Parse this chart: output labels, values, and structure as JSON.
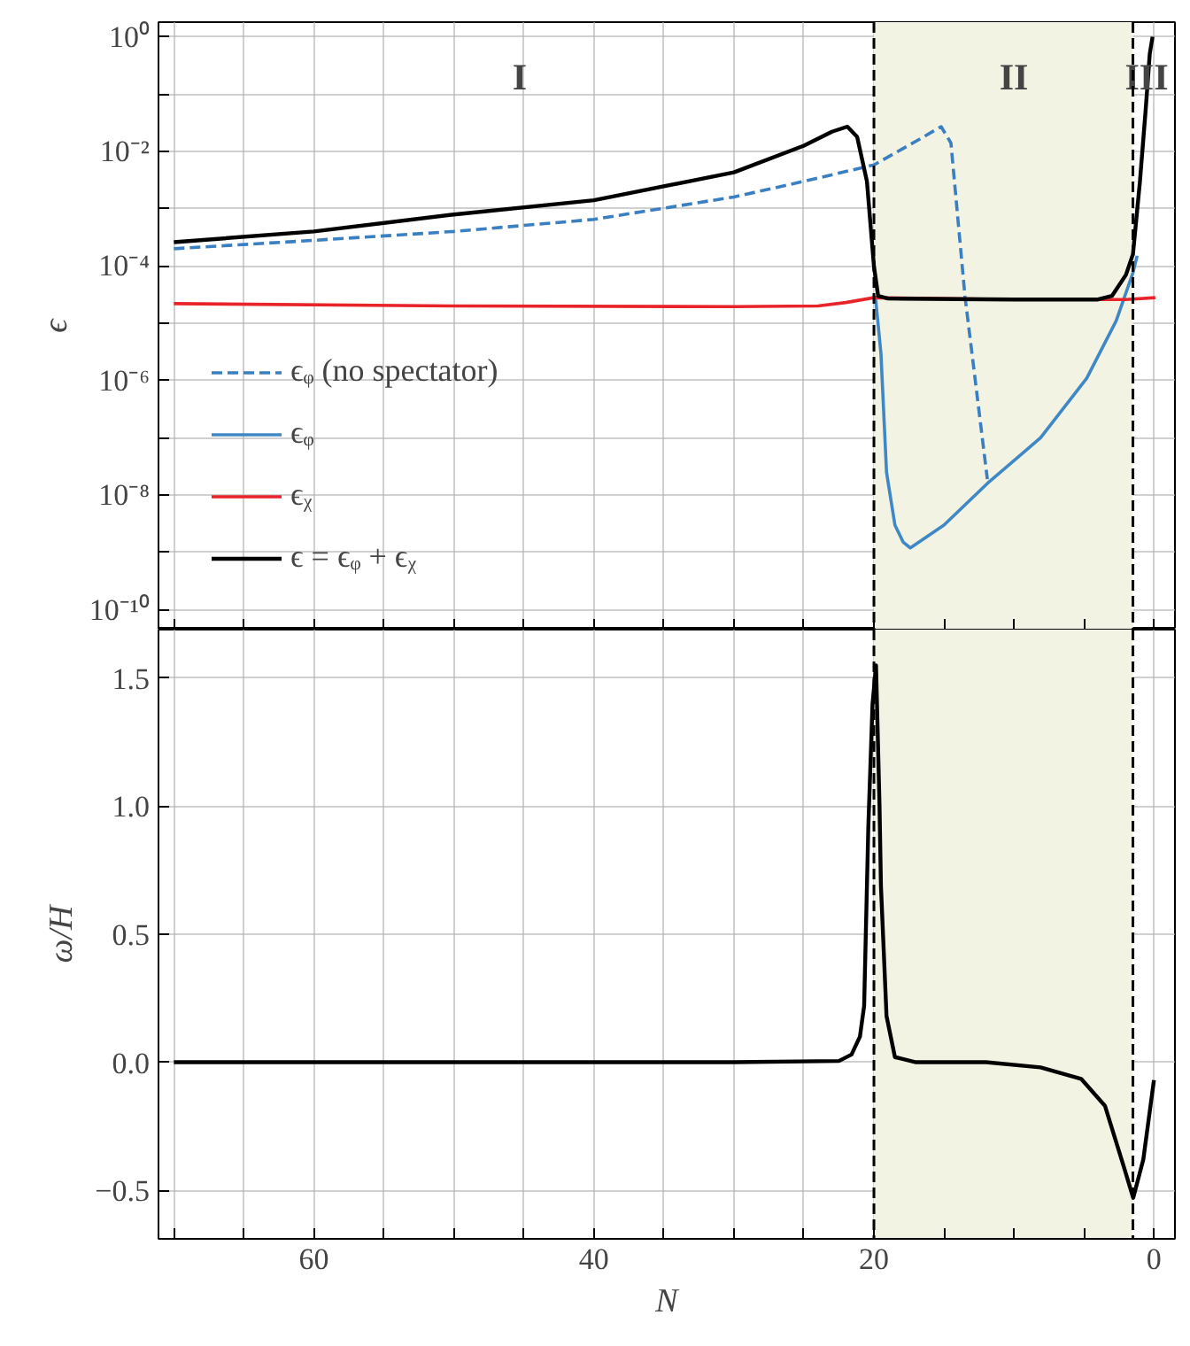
{
  "chart_data": [
    {
      "type": "line",
      "ylabel": "ϵ",
      "log": "y",
      "xlim": [
        71.1,
        -1.5
      ],
      "ylim": [
        4.5e-11,
        1.8
      ],
      "xticks": [
        {
          "value": 70,
          "label": null
        },
        {
          "value": 65,
          "label": null
        },
        {
          "value": 60,
          "label": null
        },
        {
          "value": 55,
          "label": null
        },
        {
          "value": 50,
          "label": null
        },
        {
          "value": 45,
          "label": null
        },
        {
          "value": 40,
          "label": null
        },
        {
          "value": 35,
          "label": null
        },
        {
          "value": 30,
          "label": null
        },
        {
          "value": 25,
          "label": null
        },
        {
          "value": 20,
          "label": null
        },
        {
          "value": 15,
          "label": null
        },
        {
          "value": 10,
          "label": null
        },
        {
          "value": 5,
          "label": null
        },
        {
          "value": 0,
          "label": null
        }
      ],
      "yticks": [
        {
          "value": 1,
          "label": "10⁰"
        },
        {
          "value": 0.1,
          "label": null
        },
        {
          "value": 0.01,
          "label": "10⁻²"
        },
        {
          "value": 0.001,
          "label": null
        },
        {
          "value": 0.0001,
          "label": "10⁻⁴"
        },
        {
          "value": 1e-05,
          "label": null
        },
        {
          "value": 1e-06,
          "label": "10⁻⁶"
        },
        {
          "value": 1e-07,
          "label": null
        },
        {
          "value": 1e-08,
          "label": "10⁻⁸"
        },
        {
          "value": 1e-09,
          "label": null
        },
        {
          "value": 1e-10,
          "label": "10⁻¹⁰"
        }
      ],
      "tick_labels": "y",
      "grid": true,
      "legend": "bottom left",
      "series": [
        {
          "name": "ϵᵩ (no spectator)",
          "color": "#3a7fc1",
          "line_style": "dashed",
          "x": [
            70,
            60,
            50,
            40,
            30,
            25,
            20,
            17,
            15.2,
            14.5,
            13.5,
            12.5,
            11.9
          ],
          "values": [
            0.0002,
            0.00028,
            0.0004,
            0.00065,
            0.0016,
            0.003,
            0.0058,
            0.015,
            0.027,
            0.014,
            3e-05,
            3e-07,
            1.9e-08
          ]
        },
        {
          "name": "ϵᵩ",
          "color": "#3f88c5",
          "line_style": "solid",
          "x": [
            19.9,
            19.5,
            19.1,
            18.5,
            17.9,
            17.4,
            15,
            11.9,
            8.1,
            4.8,
            2.7,
            1.5,
            1.2
          ],
          "values": [
            3e-05,
            3e-06,
            2.5e-08,
            3e-09,
            1.5e-09,
            1.2e-09,
            3e-09,
            1.6e-08,
            1e-07,
            1.1e-06,
            1.1e-05,
            7.6e-05,
            0.00015
          ]
        },
        {
          "name": "ϵᵪ",
          "color": "#e8242a",
          "line_style": "solid",
          "x": [
            70,
            50,
            30,
            24,
            22,
            20,
            10,
            2,
            -0.1
          ],
          "values": [
            2.2e-05,
            2e-05,
            1.95e-05,
            2e-05,
            2.3e-05,
            2.8e-05,
            2.6e-05,
            2.6e-05,
            2.8e-05
          ]
        },
        {
          "name": "ϵ = ϵᵩ + ϵᵪ",
          "color": "#000000",
          "line_style": "solid",
          "x": [
            70,
            60,
            50,
            40,
            30,
            25,
            23,
            21.9,
            21.2,
            20.5,
            20,
            19.7,
            19,
            10,
            4,
            3,
            2,
            1.5,
            1,
            0.6,
            0.3,
            0.1
          ],
          "values": [
            0.00026,
            0.0004,
            0.00079,
            0.0014,
            0.0043,
            0.0126,
            0.022,
            0.027,
            0.018,
            0.003,
            0.0001,
            3e-05,
            2.7e-05,
            2.6e-05,
            2.6e-05,
            3e-05,
            7e-05,
            0.00016,
            0.003,
            0.05,
            0.5,
            1.0
          ]
        }
      ],
      "bands": [
        {
          "axis": "x",
          "from": 20,
          "to": 1.5,
          "color": "#f3f3e3"
        }
      ],
      "ref_lines": [
        {
          "axis": "x",
          "value": 20,
          "color": "#000000",
          "line_style": "dashed"
        },
        {
          "axis": "x",
          "value": 1.5,
          "color": "#000000",
          "line_style": "dashed"
        }
      ],
      "annotations": [
        "I",
        "II",
        "III"
      ]
    },
    {
      "type": "line",
      "xlabel": "N",
      "ylabel": "ω/H",
      "xlim": [
        71.1,
        -1.5
      ],
      "ylim": [
        -0.69,
        1.69
      ],
      "xticks": [
        {
          "value": 70,
          "label": null
        },
        {
          "value": 65,
          "label": null
        },
        60,
        {
          "value": 55,
          "label": null
        },
        {
          "value": 50,
          "label": null
        },
        {
          "value": 45,
          "label": null
        },
        40,
        {
          "value": 35,
          "label": null
        },
        {
          "value": 30,
          "label": null
        },
        {
          "value": 25,
          "label": null
        },
        20,
        {
          "value": 15,
          "label": null
        },
        {
          "value": 10,
          "label": null
        },
        {
          "value": 5,
          "label": null
        },
        0
      ],
      "yticks": [
        {
          "value": -0.5,
          "label": "−0.5"
        },
        {
          "value": 0,
          "label": "0.0"
        },
        0.5,
        {
          "value": 1,
          "label": "1.0"
        },
        1.5
      ],
      "grid": true,
      "series": [
        {
          "color": "#000000",
          "line_style": "solid",
          "x": [
            70,
            50,
            30,
            22.5,
            21.6,
            21,
            20.7,
            20.4,
            20.1,
            19.85,
            19.6,
            19.5,
            19.1,
            18.5,
            17,
            12,
            8.1,
            5.2,
            3.5,
            2.2,
            1.48,
            0.76,
            0.0
          ],
          "values": [
            0,
            0,
            0,
            0.005,
            0.03,
            0.1,
            0.22,
            0.92,
            1.4,
            1.55,
            1.0,
            0.69,
            0.18,
            0.02,
            0.0,
            0.0,
            -0.02,
            -0.065,
            -0.17,
            -0.4,
            -0.53,
            -0.38,
            -0.07
          ]
        }
      ],
      "bands": [
        {
          "axis": "x",
          "from": 20,
          "to": 1.5,
          "color": "#f3f3e3"
        }
      ],
      "ref_lines": [
        {
          "axis": "x",
          "value": 20,
          "color": "#000000",
          "line_style": "dashed"
        },
        {
          "axis": "x",
          "value": 1.5,
          "color": "#000000",
          "line_style": "dashed"
        }
      ]
    }
  ]
}
